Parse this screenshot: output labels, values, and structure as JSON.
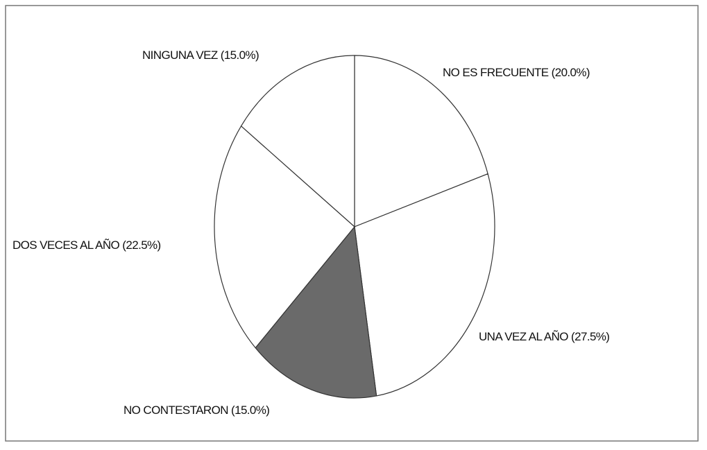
{
  "chart_data": {
    "type": "pie",
    "categories": [
      "NO ES FRECUENTE",
      "UNA VEZ AL AÑO",
      "NO CONTESTARON",
      "DOS VECES AL AÑO",
      "NINGUNA VEZ"
    ],
    "values": [
      20,
      27.5,
      15,
      22.5,
      15
    ],
    "value_labels": [
      "(20.0%)",
      "(27.5%)",
      "(15.0%)",
      "(22.5%)",
      "(15.0%)"
    ],
    "colors": [
      "#ffffff",
      "#ffffff",
      "#6a6a6a",
      "#ffffff",
      "#ffffff"
    ]
  }
}
